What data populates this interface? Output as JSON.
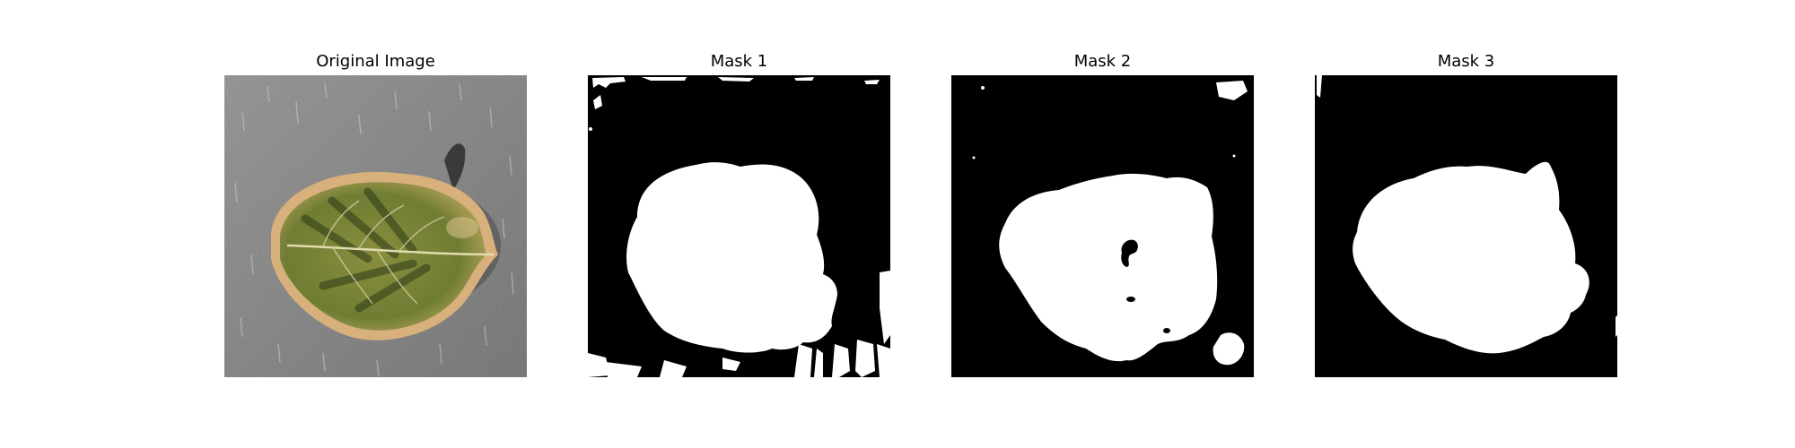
{
  "figure": {
    "panels": [
      {
        "title": "Original Image",
        "content": "photo",
        "subject": "leaf"
      },
      {
        "title": "Mask 1",
        "content": "binary-mask"
      },
      {
        "title": "Mask 2",
        "content": "binary-mask"
      },
      {
        "title": "Mask 3",
        "content": "binary-mask"
      }
    ]
  },
  "colors": {
    "mask_background": "#000000",
    "mask_foreground": "#ffffff",
    "photo_background": "#7b7b7b",
    "leaf_green": "#6f7d33",
    "leaf_dark": "#3b4a1e",
    "leaf_rim": "#d7b07c",
    "stem": "#3a3a3a"
  }
}
